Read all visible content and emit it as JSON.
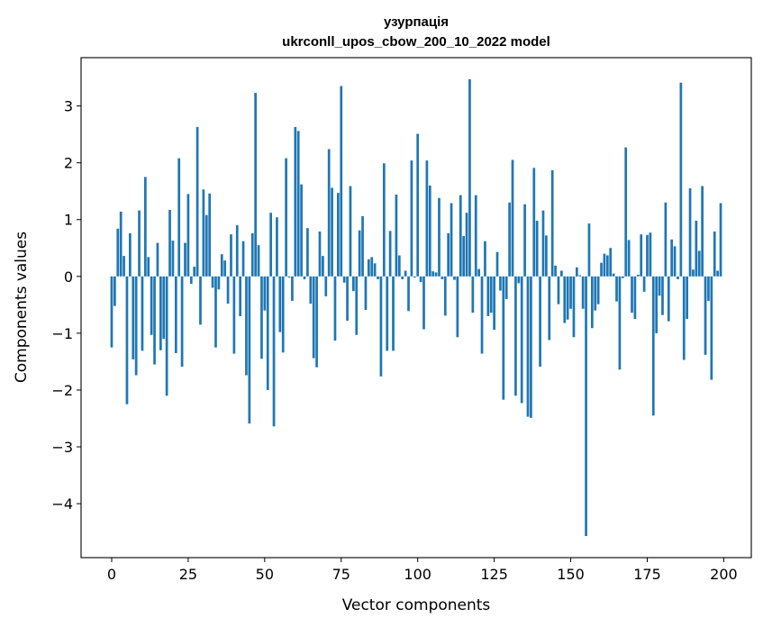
{
  "chart_data": {
    "type": "bar",
    "title_line1": "узурпація",
    "title_line2": "ukrconll_upos_cbow_200_10_2022 model",
    "xlabel": "Vector components",
    "ylabel": "Components values",
    "xlim": [
      -10,
      209
    ],
    "ylim": [
      -4.95,
      3.85
    ],
    "x_ticks": [
      0,
      25,
      50,
      75,
      100,
      125,
      150,
      175,
      200
    ],
    "y_ticks": [
      3,
      2,
      1,
      0,
      -1,
      -2,
      -3,
      -4
    ],
    "x_tick_labels": [
      "0",
      "25",
      "50",
      "75",
      "100",
      "125",
      "150",
      "175",
      "200"
    ],
    "y_tick_labels": [
      "3",
      "2",
      "1",
      "0",
      "−1",
      "−2",
      "−3",
      "−4"
    ],
    "bar_color": "#1f77b4",
    "values": [
      -1.25,
      -0.52,
      0.84,
      1.14,
      0.36,
      -2.25,
      0.76,
      -1.46,
      -1.74,
      1.16,
      -1.31,
      1.75,
      0.34,
      -1.03,
      -1.55,
      0.59,
      -1.3,
      -1.1,
      -2.1,
      1.17,
      0.63,
      -1.35,
      2.08,
      -1.59,
      0.59,
      1.45,
      -0.13,
      0.17,
      2.63,
      -0.85,
      1.53,
      1.08,
      1.46,
      -0.2,
      -1.25,
      -0.23,
      0.39,
      0.28,
      -0.48,
      0.74,
      -1.36,
      0.9,
      -0.7,
      0.62,
      -1.74,
      -2.59,
      0.76,
      3.23,
      0.55,
      -1.45,
      -0.6,
      -2.0,
      1.12,
      -2.64,
      1.04,
      -0.98,
      -1.34,
      2.08,
      -0.02,
      -0.43,
      2.63,
      2.56,
      1.62,
      -0.05,
      0.85,
      -0.48,
      -1.44,
      -1.6,
      0.79,
      0.36,
      -0.35,
      2.24,
      1.56,
      -1.13,
      1.47,
      3.35,
      -0.11,
      -0.78,
      1.59,
      -0.26,
      -1.03,
      0.81,
      1.06,
      -0.59,
      0.3,
      0.34,
      0.23,
      -0.05,
      -1.76,
      1.99,
      -1.31,
      0.8,
      -1.31,
      1.44,
      0.37,
      -0.05,
      0.1,
      -0.61,
      2.04,
      -0.02,
      2.51,
      -0.1,
      -0.93,
      2.04,
      1.6,
      0.09,
      0.07,
      1.38,
      -0.05,
      -0.69,
      0.76,
      1.29,
      -0.06,
      -1.07,
      1.43,
      0.71,
      1.12,
      3.47,
      -0.64,
      1.43,
      0.13,
      -1.36,
      0.62,
      -0.7,
      -0.64,
      -0.94,
      0.43,
      -0.25,
      -2.17,
      -0.4,
      1.3,
      2.05,
      -2.1,
      -0.12,
      -2.23,
      1.27,
      -2.47,
      -2.49,
      1.91,
      0.98,
      -1.59,
      1.16,
      0.72,
      -1.12,
      1.87,
      0.19,
      -0.49,
      0.1,
      -0.82,
      -0.76,
      -0.57,
      -1.07,
      0.16,
      0.02,
      -0.57,
      -4.57,
      0.93,
      -0.91,
      -0.6,
      -0.49,
      0.24,
      0.4,
      0.37,
      0.5,
      0.05,
      -0.44,
      -1.64,
      -0.03,
      2.27,
      0.64,
      -0.64,
      -0.75,
      0.03,
      0.74,
      -0.27,
      0.73,
      0.77,
      -2.45,
      -1.0,
      -0.34,
      -0.68,
      1.3,
      -0.79,
      0.65,
      0.53,
      -0.05,
      3.41,
      -1.47,
      -0.75,
      1.55,
      0.12,
      0.98,
      0.45,
      1.59,
      -1.38,
      -0.43,
      -1.82,
      0.79,
      0.1,
      1.29
    ]
  }
}
